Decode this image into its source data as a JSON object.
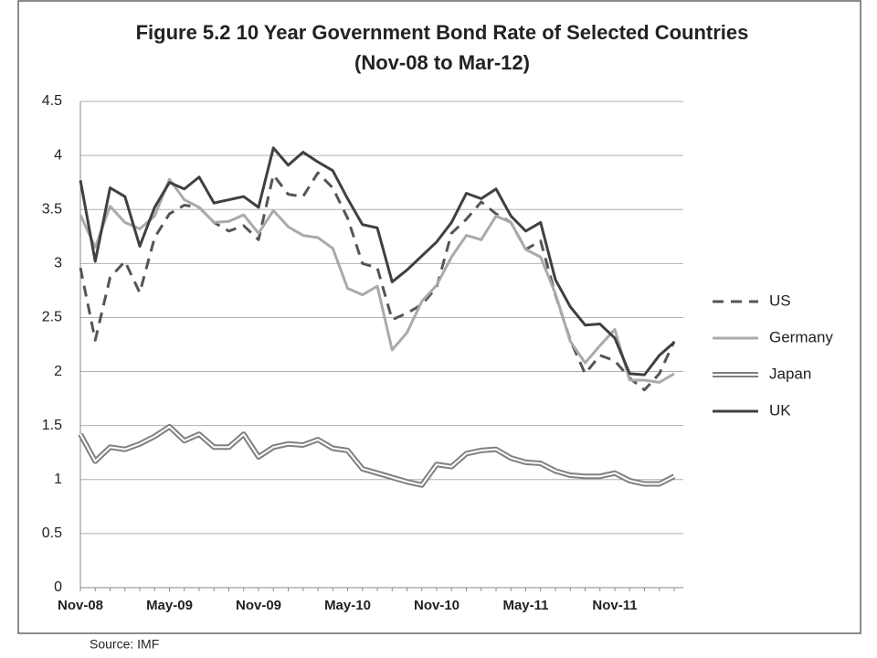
{
  "chart_data": {
    "type": "line",
    "title": "Figure 5.2 10 Year Government Bond Rate of Selected Countries",
    "subtitle": "(Nov-08 to Mar-12)",
    "source": "Source: IMF",
    "categories": [
      "Nov-08",
      null,
      null,
      null,
      null,
      null,
      "May-09",
      null,
      null,
      null,
      null,
      null,
      "Nov-09",
      null,
      null,
      null,
      null,
      null,
      "May-10",
      null,
      null,
      null,
      null,
      null,
      "Nov-10",
      null,
      null,
      null,
      null,
      null,
      "May-11",
      null,
      null,
      null,
      null,
      null,
      "Nov-11",
      null,
      null,
      null,
      null
    ],
    "series": [
      {
        "name": "US",
        "color": "#555555",
        "style": "dashed",
        "values": [
          2.96,
          2.29,
          2.87,
          3.02,
          2.73,
          3.24,
          3.46,
          3.54,
          3.52,
          3.38,
          3.3,
          3.35,
          3.22,
          3.82,
          3.64,
          3.62,
          3.84,
          3.7,
          3.42,
          3.0,
          2.96,
          2.48,
          2.54,
          2.62,
          2.78,
          3.28,
          3.41,
          3.57,
          3.46,
          3.38,
          3.13,
          3.21,
          2.71,
          2.29,
          1.98,
          2.15,
          2.1,
          1.94,
          1.83,
          1.98,
          2.28
        ]
      },
      {
        "name": "Germany",
        "color": "#aaaaaa",
        "style": "solid",
        "values": [
          3.45,
          3.15,
          3.53,
          3.38,
          3.32,
          3.44,
          3.78,
          3.59,
          3.52,
          3.38,
          3.39,
          3.45,
          3.28,
          3.49,
          3.34,
          3.26,
          3.24,
          3.14,
          2.77,
          2.71,
          2.79,
          2.2,
          2.36,
          2.65,
          2.8,
          3.06,
          3.26,
          3.22,
          3.44,
          3.38,
          3.13,
          3.06,
          2.72,
          2.28,
          2.08,
          2.24,
          2.39,
          1.92,
          1.92,
          1.9,
          1.98
        ]
      },
      {
        "name": "Japan",
        "color": "#808080",
        "style": "double",
        "values": [
          1.42,
          1.17,
          1.3,
          1.28,
          1.33,
          1.4,
          1.49,
          1.36,
          1.42,
          1.3,
          1.3,
          1.42,
          1.21,
          1.3,
          1.33,
          1.32,
          1.37,
          1.29,
          1.27,
          1.1,
          1.06,
          1.02,
          0.98,
          0.95,
          1.14,
          1.12,
          1.24,
          1.27,
          1.28,
          1.2,
          1.16,
          1.15,
          1.08,
          1.04,
          1.03,
          1.03,
          1.06,
          0.99,
          0.96,
          0.96,
          1.03
        ]
      },
      {
        "name": "UK",
        "color": "#404040",
        "style": "solid",
        "values": [
          3.77,
          3.02,
          3.7,
          3.62,
          3.16,
          3.52,
          3.75,
          3.69,
          3.8,
          3.56,
          3.59,
          3.62,
          3.52,
          4.07,
          3.91,
          4.03,
          3.94,
          3.86,
          3.6,
          3.36,
          3.33,
          2.83,
          2.94,
          3.07,
          3.2,
          3.38,
          3.65,
          3.6,
          3.69,
          3.44,
          3.3,
          3.38,
          2.85,
          2.6,
          2.43,
          2.44,
          2.31,
          1.98,
          1.97,
          2.15,
          2.27
        ]
      }
    ],
    "ylim": [
      0,
      4.5
    ],
    "yticks": [
      0,
      0.5,
      1,
      1.5,
      2,
      2.5,
      3,
      3.5,
      4,
      4.5
    ],
    "grid": true,
    "legend": "right"
  }
}
